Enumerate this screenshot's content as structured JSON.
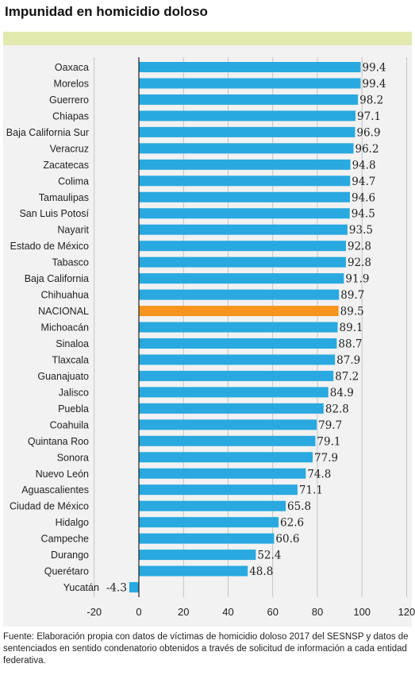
{
  "header": {
    "title": "Impunidad en homicidio doloso"
  },
  "source": {
    "text": "Fuente: Elaboración propia con datos de víctimas de homicidio doloso 2017 del SESNSP y datos de sentenciados en sentido condenatorio obtenidos a través de solicitud de información a cada entidad federativa."
  },
  "colors": {
    "bar": "#29a9df",
    "highlight": "#f7941d",
    "panel": "#f2f2f2",
    "band": "#e3eaad"
  },
  "chart_data": {
    "type": "bar",
    "orientation": "horizontal",
    "title": "Impunidad en homicidio doloso",
    "xlim": [
      -20,
      120
    ],
    "xticks": [
      -20,
      0,
      20,
      40,
      60,
      80,
      100,
      120
    ],
    "grid": true,
    "highlight_category": "NACIONAL",
    "categories": [
      "Oaxaca",
      "Morelos",
      "Guerrero",
      "Chiapas",
      "Baja California Sur",
      "Veracruz",
      "Zacatecas",
      "Colima",
      "Tamaulipas",
      "San Luis Potosí",
      "Nayarit",
      "Estado de México",
      "Tabasco",
      "Baja California",
      "Chihuahua",
      "NACIONAL",
      "Michoacán",
      "Sinaloa",
      "Tlaxcala",
      "Guanajuato",
      "Jalisco",
      "Puebla",
      "Coahuila",
      "Quintana Roo",
      "Sonora",
      "Nuevo León",
      "Aguascalientes",
      "Ciudad de México",
      "Hidalgo",
      "Campeche",
      "Durango",
      "Querétaro",
      "Yucatán"
    ],
    "values": [
      99.4,
      99.4,
      98.2,
      97.1,
      96.9,
      96.2,
      94.8,
      94.7,
      94.6,
      94.5,
      93.5,
      92.8,
      92.8,
      91.9,
      89.7,
      89.5,
      89.1,
      88.7,
      87.9,
      87.2,
      84.9,
      82.8,
      79.7,
      79.1,
      77.9,
      74.8,
      71.1,
      65.8,
      62.6,
      60.6,
      52.4,
      48.8,
      -4.3
    ],
    "labels": [
      "99.4",
      "99.4",
      "98.2",
      "97.1",
      "96.9",
      "96.2",
      "94.8",
      "94.7",
      "94.6",
      "94.5",
      "93.5",
      "92.8",
      "92.8",
      "91.9",
      "89.7",
      "89.5",
      "89.1",
      "88.7",
      "87.9",
      "87.2",
      "84.9",
      "82.8",
      "79.7",
      "79.1",
      "77.9",
      "74.8",
      "71.1",
      "65.8",
      "62.6",
      "60.6",
      "52.4",
      "48.8",
      "-4.3"
    ]
  }
}
